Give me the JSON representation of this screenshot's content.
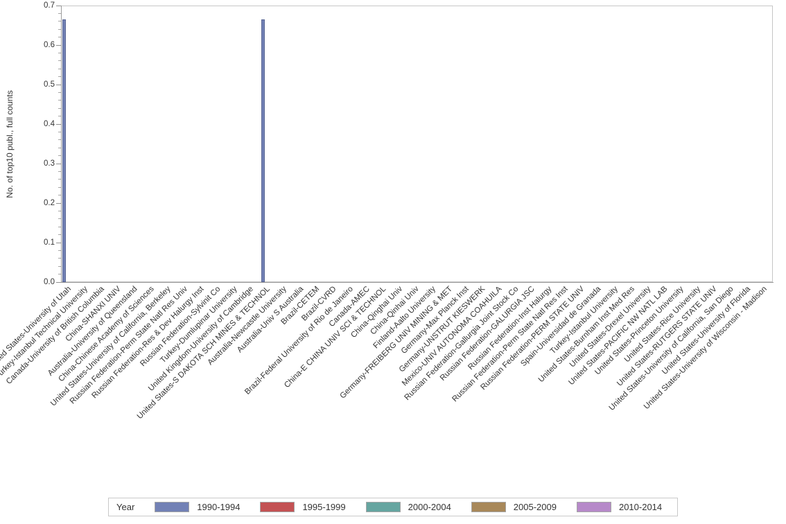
{
  "chart_data": {
    "type": "bar",
    "title": "",
    "ylabel": "No. of top10 publ., full counts",
    "xlabel": "",
    "ylim": [
      0,
      0.7
    ],
    "ytick_labels": [
      "0.0",
      "0.1",
      "0.2",
      "0.3",
      "0.4",
      "0.5",
      "0.6",
      "0.7"
    ],
    "minor_tick_step": 0.02,
    "grid": false,
    "legend": {
      "title": "Year",
      "position": "bottom"
    },
    "categories": [
      "United States-University of Utah",
      "Turkey-Istanbul Technical University",
      "Canada-University of British Columbia",
      "China-SHANXI UNIV",
      "Australia-University of Queensland",
      "China-Chinese Academy of Sciences",
      "United States-University of California, Berkeley",
      "Russian Federation-Perm State Natl Res Univ",
      "Russian Federation-Res & Dev Halurgy Inst",
      "Russian Federation-Sylvinit Co",
      "Turkey-Dumlupinar University",
      "United Kingdom-University of Cambridge",
      "United States-S DAKOTA SCH MINES & TECHNOL",
      "Australia-Newcastle University",
      "Australia-Univ S Australia",
      "Brazil-CETEM",
      "Brazil-CVRD",
      "Brazil-Federal University of Rio de Janeiro",
      "Canada-AMEC",
      "China-E CHINA UNIV SCI & TECHNOL",
      "China-Qinghai Univ",
      "China-Qinhai Univ",
      "Finland-Aalto University",
      "Germany-FREIBERG UNIV MINING & MET",
      "Germany-Max Planck Inst",
      "Germany-UNSTRUT KIESWERK",
      "Mexico-UNIV AUTONOMA COAHUILA",
      "Russian Federation-Gallurgia Joint Stock Co",
      "Russian Federation-GALURGIA JSC",
      "Russian Federation-Inst Halurgy",
      "Russian Federation-Perm State Natl Res Inst",
      "Russian Federation-PERM STATE UNIV",
      "Spain-Universidad de Granada",
      "Turkey-Istanbul University",
      "United States-Burnham Inst Med Res",
      "United States-Drexel University",
      "United States-PACIFIC NW NATL LAB",
      "United States-Princeton University",
      "United States-Rice University",
      "United States-RUTGERS STATE UNIV",
      "United States-University of California, San Diego",
      "United States-University of Florida",
      "United States-University of Wisconsin - Madison"
    ],
    "series": [
      {
        "name": "1990-1994",
        "color": "#7281B5",
        "points": [
          {
            "category": "United States-University of Utah",
            "value": 0.665
          },
          {
            "category": "United States-S DAKOTA SCH MINES & TECHNOL",
            "value": 0.665
          }
        ]
      },
      {
        "name": "1995-1999",
        "color": "#C35254",
        "points": []
      },
      {
        "name": "2000-2004",
        "color": "#66A5A0",
        "points": []
      },
      {
        "name": "2005-2009",
        "color": "#A8885A",
        "points": []
      },
      {
        "name": "2010-2014",
        "color": "#B689C9",
        "points": []
      }
    ]
  }
}
